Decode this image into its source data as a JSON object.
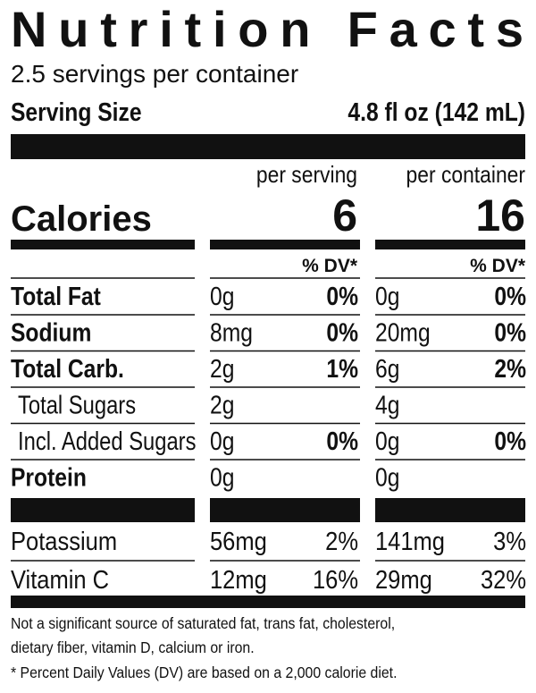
{
  "title": "Nutrition Facts",
  "servings": "2.5 servings per container",
  "serving_size": {
    "label": "Serving Size",
    "value": "4.8 fl oz (142 mL)"
  },
  "columns": [
    "per serving",
    "per container"
  ],
  "calories": {
    "label": "Calories",
    "values": [
      "6",
      "16"
    ]
  },
  "dv_header": "% DV*",
  "nutrients": [
    {
      "name": "Total Fat",
      "bold": true,
      "amounts": [
        "0g",
        "0g"
      ],
      "dv": [
        "0%",
        "0%"
      ]
    },
    {
      "name": "Sodium",
      "bold": true,
      "amounts": [
        "8mg",
        "20mg"
      ],
      "dv": [
        "0%",
        "0%"
      ]
    },
    {
      "name": "Total Carb.",
      "bold": true,
      "amounts": [
        "2g",
        "6g"
      ],
      "dv": [
        "1%",
        "2%"
      ]
    },
    {
      "name": "Total Sugars",
      "indent": true,
      "amounts": [
        "2g",
        "4g"
      ]
    },
    {
      "name": "Incl. Added Sugars",
      "indent": true,
      "amounts": [
        "0g",
        "0g"
      ],
      "dv": [
        "0%",
        "0%"
      ]
    },
    {
      "name": "Protein",
      "bold": true,
      "amounts": [
        "0g",
        "0g"
      ]
    }
  ],
  "vitamins": [
    {
      "name": "Potassium",
      "amounts": [
        "56mg",
        "141mg"
      ],
      "dv": [
        "2%",
        "3%"
      ]
    },
    {
      "name": "Vitamin C",
      "amounts": [
        "12mg",
        "29mg"
      ],
      "dv": [
        "16%",
        "32%"
      ]
    }
  ],
  "footnotes": [
    "Not a significant source of saturated fat, trans fat, cholesterol,",
    "dietary fiber, vitamin D, calcium or iron.",
    "* Percent Daily Values (DV) are based on a 2,000 calorie diet."
  ]
}
